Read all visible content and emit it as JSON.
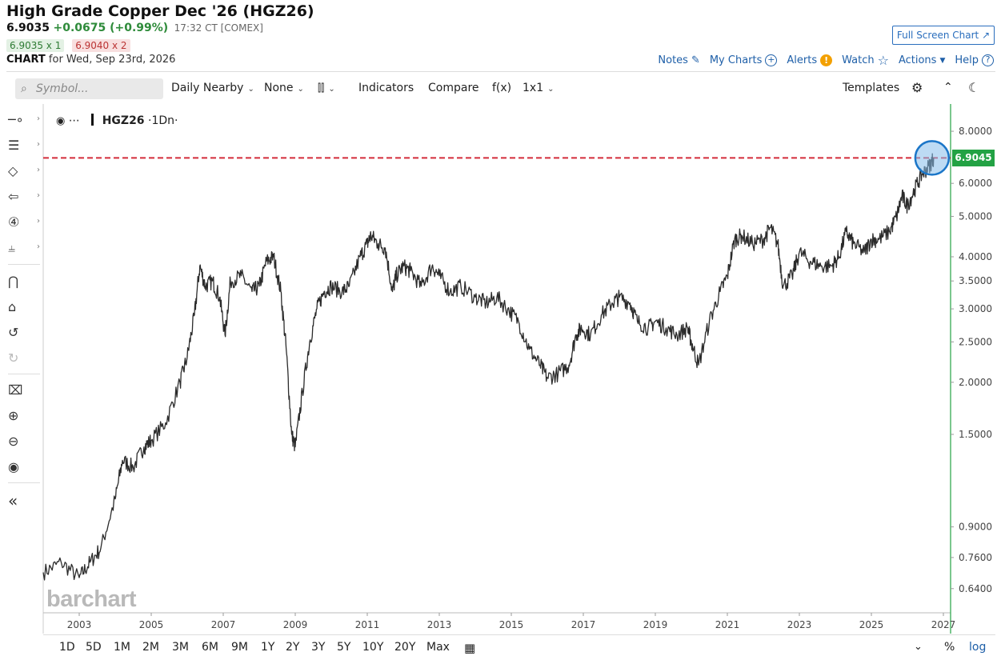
{
  "header": {
    "title": "High Grade Copper Dec '26 (HGZ26)",
    "price": "6.9035",
    "change": "+0.0675 (+0.99%)",
    "time": "17:32 CT [COMEX]",
    "bid": "6.9035 x 1",
    "ask": "6.9040 x 2",
    "chart_label": "CHART",
    "chart_for": "for Wed, Sep 23rd, 2026",
    "fullscreen_label": "Full Screen Chart",
    "links": {
      "notes": "Notes",
      "my_charts": "My Charts",
      "alerts": "Alerts",
      "watch": "Watch",
      "actions": "Actions",
      "help": "Help"
    }
  },
  "toolbar": {
    "symbol_placeholder": "Symbol...",
    "period": "Daily Nearby",
    "overlay": "None",
    "indicators": "Indicators",
    "compare": "Compare",
    "fx": "f(x)",
    "layout": "1x1",
    "templates": "Templates"
  },
  "legend": {
    "symbol": "HGZ26",
    "interval": "·1Dn·"
  },
  "watermark": "barchart",
  "price_tag": "6.9045",
  "ranges": [
    "1D",
    "5D",
    "1M",
    "2M",
    "3M",
    "6M",
    "9M",
    "1Y",
    "2Y",
    "3Y",
    "5Y",
    "10Y",
    "20Y",
    "Max"
  ],
  "scale_buttons": {
    "percent": "%",
    "log": "log"
  },
  "colors": {
    "accent": "#1e5fa8",
    "up": "#23a244",
    "line": "#2b2b2b",
    "reference": "#d42c3a",
    "highlight": "#1b76c8"
  },
  "chart_data": {
    "type": "line",
    "title": "",
    "xlabel": "",
    "ylabel": "",
    "log_scale": true,
    "grid": false,
    "xlim": [
      2002.0,
      2027.2
    ],
    "ylim": [
      0.56,
      9.3
    ],
    "x_ticks": [
      "2003",
      "2005",
      "2007",
      "2009",
      "2011",
      "2013",
      "2015",
      "2017",
      "2019",
      "2021",
      "2023",
      "2025",
      "2027"
    ],
    "y_ticks": [
      "8.0000",
      "6.0000",
      "5.0000",
      "4.0000",
      "3.5000",
      "3.0000",
      "2.5000",
      "2.0000",
      "1.5000",
      "0.9000",
      "0.7600",
      "0.6400"
    ],
    "reference_line": 6.9045,
    "series": [
      {
        "x": [
          2002.0,
          2002.5,
          2003.0,
          2003.3,
          2003.6,
          2004.0,
          2004.2,
          2004.5,
          2004.8,
          2005.0,
          2005.4,
          2005.8,
          2006.0,
          2006.2,
          2006.35,
          2006.5,
          2006.7,
          2006.9,
          2007.05,
          2007.2,
          2007.5,
          2007.8,
          2008.0,
          2008.2,
          2008.4,
          2008.6,
          2008.75,
          2008.9,
          2009.0,
          2009.2,
          2009.4,
          2009.6,
          2009.8,
          2010.0,
          2010.3,
          2010.5,
          2010.8,
          2011.0,
          2011.1,
          2011.3,
          2011.5,
          2011.7,
          2011.8,
          2012.0,
          2012.2,
          2012.5,
          2012.8,
          2013.0,
          2013.3,
          2013.6,
          2014.0,
          2014.3,
          2014.6,
          2014.9,
          2015.2,
          2015.5,
          2015.8,
          2016.0,
          2016.3,
          2016.6,
          2016.8,
          2016.95,
          2017.2,
          2017.5,
          2017.8,
          2018.0,
          2018.3,
          2018.5,
          2018.8,
          2019.0,
          2019.3,
          2019.6,
          2019.9,
          2020.0,
          2020.2,
          2020.5,
          2020.8,
          2021.0,
          2021.2,
          2021.4,
          2021.7,
          2022.0,
          2022.2,
          2022.4,
          2022.55,
          2022.8,
          2023.0,
          2023.3,
          2023.6,
          2023.9,
          2024.1,
          2024.3,
          2024.5,
          2024.8,
          2025.0,
          2025.2,
          2025.5,
          2025.7,
          2025.85,
          2026.0,
          2026.2,
          2026.4,
          2026.6,
          2026.73
        ],
        "values": [
          0.7,
          0.74,
          0.68,
          0.74,
          0.8,
          1.05,
          1.3,
          1.25,
          1.4,
          1.45,
          1.6,
          2.0,
          2.3,
          2.9,
          3.8,
          3.4,
          3.5,
          3.2,
          2.6,
          3.5,
          3.6,
          3.3,
          3.4,
          3.9,
          4.0,
          3.3,
          2.4,
          1.5,
          1.4,
          1.9,
          2.5,
          3.0,
          3.3,
          3.4,
          3.3,
          3.4,
          4.0,
          4.3,
          4.5,
          4.3,
          4.2,
          3.3,
          3.6,
          3.8,
          3.7,
          3.4,
          3.8,
          3.6,
          3.3,
          3.4,
          3.2,
          3.1,
          3.2,
          3.0,
          2.8,
          2.4,
          2.2,
          2.05,
          2.1,
          2.2,
          2.6,
          2.7,
          2.6,
          2.9,
          3.1,
          3.2,
          3.1,
          2.8,
          2.7,
          2.8,
          2.7,
          2.6,
          2.7,
          2.5,
          2.2,
          2.8,
          3.3,
          3.6,
          4.4,
          4.5,
          4.3,
          4.4,
          4.7,
          4.3,
          3.4,
          3.6,
          4.1,
          3.9,
          3.8,
          3.8,
          4.0,
          4.6,
          4.3,
          4.1,
          4.4,
          4.4,
          4.6,
          5.0,
          5.6,
          5.3,
          5.8,
          6.3,
          6.6,
          6.9045
        ]
      }
    ]
  }
}
